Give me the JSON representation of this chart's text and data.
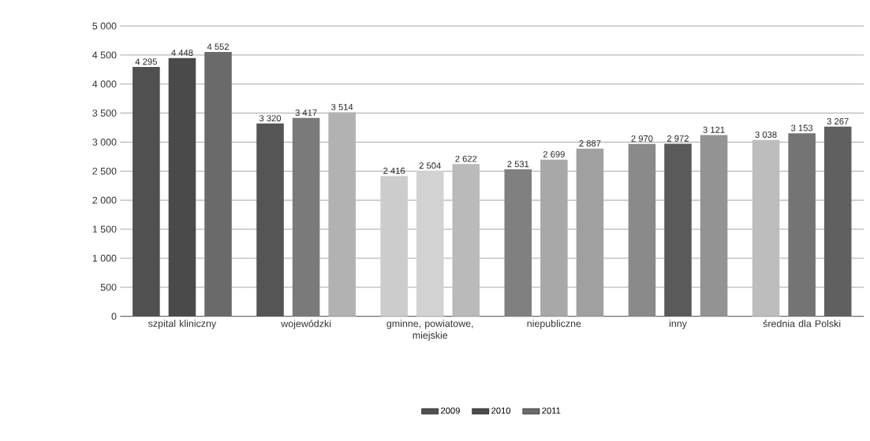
{
  "chart_data": {
    "type": "bar",
    "categories": [
      "szpital kliniczny",
      "wojewódzki",
      "gminne, powiatowe, miejskie",
      "niepubliczne",
      "inny",
      "średnia dla Polski"
    ],
    "series": [
      {
        "name": "2009",
        "color": "#505050",
        "colors": [
          "#505050",
          "#555555",
          "#cccccc",
          "#808080",
          "#8a8a8a",
          "#bdbdbd"
        ],
        "values": [
          4295,
          3320,
          2416,
          2531,
          2970,
          3038
        ],
        "value_labels": [
          "4 295",
          "3 320",
          "2 416",
          "2 531",
          "2 970",
          "3 038"
        ]
      },
      {
        "name": "2010",
        "color": "#4a4a4a",
        "colors": [
          "#4a4a4a",
          "#7a7a7a",
          "#d2d2d2",
          "#a8a8a8",
          "#5a5a5a",
          "#747474"
        ],
        "values": [
          4448,
          3417,
          2504,
          2699,
          2972,
          3153
        ],
        "value_labels": [
          "4 448",
          "3 417",
          "2 504",
          "2 699",
          "2 972",
          "3 153"
        ]
      },
      {
        "name": "2011",
        "color": "#6a6a6a",
        "colors": [
          "#6a6a6a",
          "#b2b2b2",
          "#bababa",
          "#a0a0a0",
          "#939393",
          "#606060"
        ],
        "values": [
          4552,
          3514,
          2622,
          2887,
          3121,
          3267
        ],
        "value_labels": [
          "4 552",
          "3 514",
          "2 622",
          "2 887",
          "3 121",
          "3 267"
        ]
      }
    ],
    "ylim": [
      0,
      5000
    ],
    "yticks": [
      0,
      500,
      {
        "value": 1000,
        "label": "1 000"
      },
      {
        "value": 1500,
        "label": "1 500"
      },
      {
        "value": 2000,
        "label": "2 000"
      },
      {
        "value": 2500,
        "label": "2 500"
      },
      {
        "value": 3000,
        "label": "3 000"
      },
      {
        "value": 3500,
        "label": "3 500"
      },
      {
        "value": 4000,
        "label": "4 000"
      },
      {
        "value": 4500,
        "label": "4 500"
      },
      {
        "value": 5000,
        "label": "5 000"
      }
    ],
    "grid": "y",
    "legend": "bottom"
  }
}
